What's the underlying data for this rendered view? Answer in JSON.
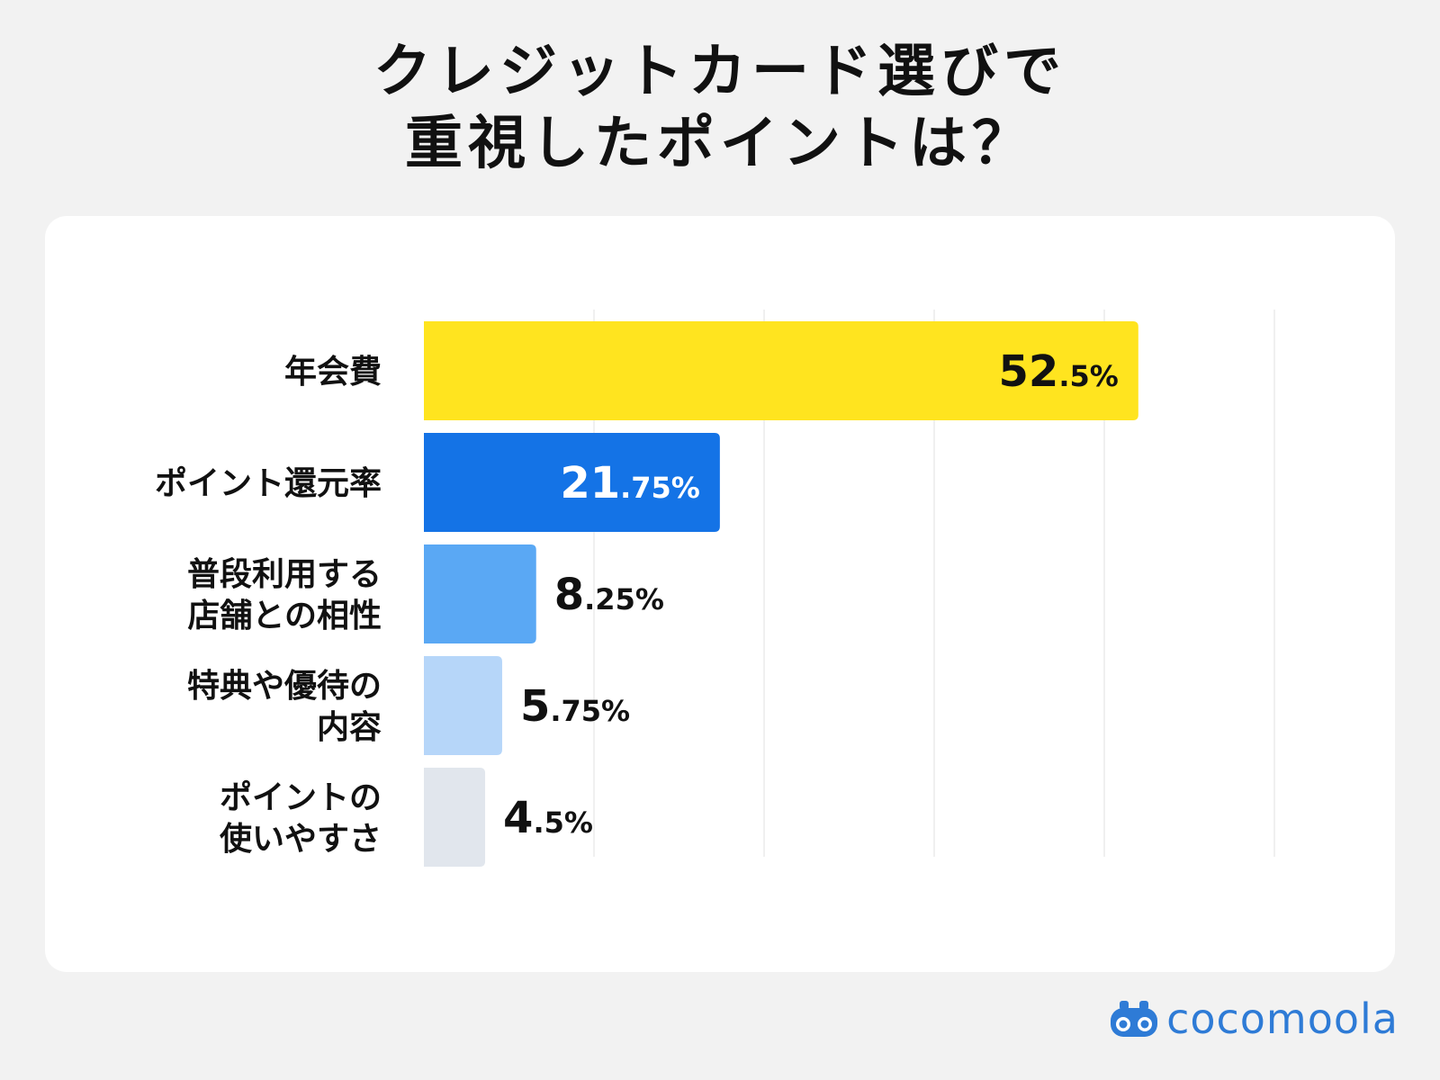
{
  "header": {
    "title_line1": "クレジットカード選びで",
    "title_line2": "重視したポイントは？"
  },
  "brand": {
    "name": "cocomoola",
    "logo_icon": "binoculars-icon",
    "color": "#2e7bd6"
  },
  "chart_data": {
    "type": "bar",
    "orientation": "horizontal",
    "title": "クレジットカード選びで重視したポイントは？",
    "xlim": [
      0,
      62.5
    ],
    "grid": true,
    "legend": "none",
    "unit": "%",
    "categories": [
      [
        "年会費"
      ],
      [
        "ポイント還元率"
      ],
      [
        "普段利用する",
        "店舗との相性"
      ],
      [
        "特典や優待の",
        "内容"
      ],
      [
        "ポイントの",
        "使いやすさ"
      ]
    ],
    "values": [
      52.5,
      21.75,
      8.25,
      5.75,
      4.5
    ],
    "value_labels": [
      {
        "int": "52",
        "dec": ".5%"
      },
      {
        "int": "21",
        "dec": ".75%"
      },
      {
        "int": "8",
        "dec": ".25%"
      },
      {
        "int": "5",
        "dec": ".75%"
      },
      {
        "int": "4",
        "dec": ".5%"
      }
    ],
    "colors": [
      "#ffe41f",
      "#1473e6",
      "#5aa8f4",
      "#b6d6f9",
      "#e1e6ed"
    ],
    "label_inside": [
      true,
      true,
      false,
      false,
      false
    ],
    "label_colors": [
      "#111111",
      "#ffffff",
      "#111111",
      "#111111",
      "#111111"
    ]
  }
}
